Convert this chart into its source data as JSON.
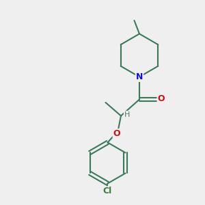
{
  "bg_color": "#efefef",
  "bond_color": "#3a7a5a",
  "bond_width": 1.5,
  "atom_colors": {
    "N": "#1010dd",
    "O": "#cc1010",
    "Cl": "#3a7a3a",
    "H": "#507a6a",
    "C": "#3a7a5a"
  },
  "font_size_atom": 9,
  "font_size_label": 8,
  "fig_w": 3.0,
  "fig_h": 3.0,
  "dpi": 100
}
